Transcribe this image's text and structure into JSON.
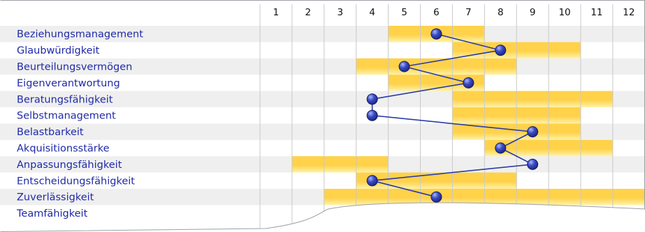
{
  "chart_data": {
    "type": "profile",
    "title": "",
    "xlabel": "",
    "ylabel": "",
    "x_ticks": [
      1,
      2,
      3,
      4,
      5,
      6,
      7,
      8,
      9,
      10,
      11,
      12
    ],
    "xlim": [
      0.5,
      12.5
    ],
    "grid": true,
    "legend": "none",
    "colors": {
      "band": "#ffd24a",
      "band_light": "#fff0a0",
      "marker": "#2b3aa8",
      "marker_highlight": "#8f9ef0",
      "line": "#2b3aa8",
      "row_shade": "#efefef",
      "grid": "#c9c9c9",
      "label": "#1f2aa8"
    },
    "rows": [
      {
        "label": "Beziehungsmanagement",
        "range": [
          5,
          7
        ],
        "value": 6
      },
      {
        "label": "Glaubwürdigkeit",
        "range": [
          7,
          10
        ],
        "value": 8
      },
      {
        "label": "Beurteilungsvermögen",
        "range": [
          4,
          8
        ],
        "value": 5
      },
      {
        "label": "Eigenverantwortung",
        "range": [
          5,
          7
        ],
        "value": 7
      },
      {
        "label": "Beratungsfähigkeit",
        "range": [
          7,
          11
        ],
        "value": 4
      },
      {
        "label": "Selbstmanagement",
        "range": [
          7,
          10
        ],
        "value": 4
      },
      {
        "label": "Belastbarkeit",
        "range": [
          7,
          10
        ],
        "value": 9
      },
      {
        "label": "Akquisitionsstärke",
        "range": [
          8,
          11
        ],
        "value": 8
      },
      {
        "label": "Anpassungsfähigkeit",
        "range": [
          2,
          4
        ],
        "value": 9
      },
      {
        "label": "Entscheidungsfähigkeit",
        "range": [
          4,
          8
        ],
        "value": 4
      },
      {
        "label": "Zuverlässigkeit",
        "range": [
          3,
          12
        ],
        "value": 6
      },
      {
        "label": "Teamfähigkeit",
        "range": [],
        "value": null
      }
    ]
  }
}
